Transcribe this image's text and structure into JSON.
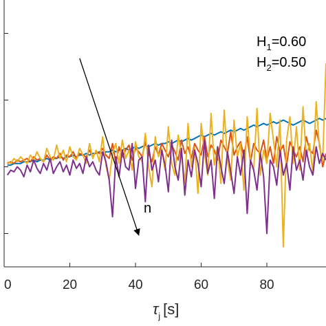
{
  "chart_data": {
    "type": "line",
    "xlabel": "τ",
    "xlabel_sub": "j",
    "xlabel_unit": "[s]",
    "xlim": [
      0,
      98
    ],
    "ylim": [
      0,
      1.6
    ],
    "x_ticks": [
      0,
      20,
      40,
      60,
      80
    ],
    "x_tick_labels": [
      "0",
      "20",
      "40",
      "60",
      "80"
    ],
    "y_ticks": [
      0.2,
      0.6,
      1.0,
      1.4
    ],
    "y_tick_labels": [],
    "grid": false,
    "legend": "none",
    "annotations": {
      "h1_label": "H",
      "h1_sub": "1",
      "h1_value": "=0.60",
      "h2_label": "H",
      "h2_sub": "2",
      "h2_value": "=0.50",
      "arrow_label": "n",
      "arrow": {
        "x1": 23,
        "y1": 1.25,
        "x2": 41,
        "y2": 0.19
      }
    },
    "x": [
      1,
      2,
      3,
      4,
      5,
      6,
      7,
      8,
      9,
      10,
      11,
      12,
      13,
      14,
      15,
      16,
      17,
      18,
      19,
      20,
      21,
      22,
      23,
      24,
      25,
      26,
      27,
      28,
      29,
      30,
      31,
      32,
      33,
      34,
      35,
      36,
      37,
      38,
      39,
      40,
      41,
      42,
      43,
      44,
      45,
      46,
      47,
      48,
      49,
      50,
      51,
      52,
      53,
      54,
      55,
      56,
      57,
      58,
      59,
      60,
      61,
      62,
      63,
      64,
      65,
      66,
      67,
      68,
      69,
      70,
      71,
      72,
      73,
      74,
      75,
      76,
      77,
      78,
      79,
      80,
      81,
      82,
      83,
      84,
      85,
      86,
      87,
      88,
      89,
      90,
      91,
      92,
      93,
      94,
      95,
      96,
      97,
      98
    ],
    "series": [
      {
        "color": "#0072BD",
        "values": [
          0.61,
          0.61,
          0.62,
          0.62,
          0.62,
          0.63,
          0.63,
          0.63,
          0.64,
          0.63,
          0.64,
          0.64,
          0.65,
          0.64,
          0.65,
          0.65,
          0.66,
          0.65,
          0.66,
          0.66,
          0.67,
          0.66,
          0.67,
          0.67,
          0.68,
          0.67,
          0.68,
          0.68,
          0.69,
          0.68,
          0.69,
          0.69,
          0.7,
          0.69,
          0.7,
          0.7,
          0.71,
          0.7,
          0.71,
          0.72,
          0.71,
          0.72,
          0.73,
          0.72,
          0.73,
          0.74,
          0.73,
          0.74,
          0.74,
          0.75,
          0.74,
          0.75,
          0.76,
          0.75,
          0.76,
          0.77,
          0.76,
          0.77,
          0.78,
          0.79,
          0.78,
          0.79,
          0.8,
          0.79,
          0.8,
          0.81,
          0.8,
          0.81,
          0.82,
          0.81,
          0.82,
          0.83,
          0.82,
          0.83,
          0.84,
          0.85,
          0.84,
          0.85,
          0.86,
          0.85,
          0.86,
          0.87,
          0.86,
          0.87,
          0.88,
          0.87,
          0.86,
          0.85,
          0.86,
          0.87,
          0.88,
          0.87,
          0.86,
          0.87,
          0.88,
          0.89,
          0.88,
          0.89
        ]
      },
      {
        "color": "#D95319",
        "values": [
          0.62,
          0.63,
          0.62,
          0.64,
          0.63,
          0.64,
          0.65,
          0.63,
          0.66,
          0.64,
          0.65,
          0.63,
          0.67,
          0.64,
          0.66,
          0.65,
          0.68,
          0.64,
          0.67,
          0.66,
          0.69,
          0.65,
          0.68,
          0.67,
          0.66,
          0.7,
          0.66,
          0.69,
          0.68,
          0.71,
          0.67,
          0.65,
          0.74,
          0.62,
          0.72,
          0.66,
          0.7,
          0.73,
          0.64,
          0.71,
          0.69,
          0.66,
          0.75,
          0.68,
          0.63,
          0.72,
          0.67,
          0.74,
          0.7,
          0.66,
          0.73,
          0.69,
          0.64,
          0.76,
          0.68,
          0.72,
          0.65,
          0.74,
          0.7,
          0.67,
          0.78,
          0.66,
          0.73,
          0.7,
          0.64,
          0.76,
          0.72,
          0.68,
          0.81,
          0.67,
          0.72,
          0.75,
          0.66,
          0.78,
          0.63,
          0.74,
          0.7,
          0.68,
          0.76,
          0.64,
          0.72,
          0.62,
          0.78,
          0.69,
          0.73,
          0.61,
          0.75,
          0.7,
          0.66,
          0.72,
          0.63,
          0.78,
          0.7,
          0.68,
          0.82,
          0.74,
          0.6,
          0.68
        ]
      },
      {
        "color": "#EDB120",
        "values": [
          0.63,
          0.62,
          0.65,
          0.63,
          0.66,
          0.64,
          0.62,
          0.67,
          0.64,
          0.69,
          0.65,
          0.63,
          0.71,
          0.66,
          0.64,
          0.73,
          0.65,
          0.7,
          0.63,
          0.72,
          0.66,
          0.64,
          0.71,
          0.67,
          0.62,
          0.74,
          0.65,
          0.7,
          0.63,
          0.78,
          0.61,
          0.52,
          0.68,
          0.74,
          0.62,
          0.76,
          0.65,
          0.7,
          0.58,
          0.75,
          0.66,
          0.63,
          0.8,
          0.6,
          0.48,
          0.78,
          0.66,
          0.71,
          0.58,
          0.84,
          0.62,
          0.55,
          0.79,
          0.67,
          0.5,
          0.86,
          0.6,
          0.72,
          0.44,
          0.86,
          0.68,
          0.55,
          0.92,
          0.61,
          0.72,
          0.5,
          0.94,
          0.64,
          0.52,
          0.88,
          0.66,
          0.74,
          0.46,
          0.9,
          0.64,
          0.58,
          0.95,
          0.55,
          0.7,
          0.62,
          0.92,
          0.76,
          0.6,
          0.88,
          0.12,
          0.76,
          0.9,
          0.62,
          0.84,
          0.58,
          0.96,
          0.66,
          0.74,
          0.56,
          0.99,
          0.72,
          0.64,
          1.22
        ]
      },
      {
        "color": "#7E2F8E",
        "values": [
          0.55,
          0.58,
          0.57,
          0.6,
          0.58,
          0.54,
          0.61,
          0.57,
          0.64,
          0.59,
          0.56,
          0.62,
          0.58,
          0.65,
          0.56,
          0.6,
          0.63,
          0.57,
          0.61,
          0.55,
          0.64,
          0.59,
          0.62,
          0.56,
          0.66,
          0.6,
          0.63,
          0.58,
          0.55,
          0.69,
          0.63,
          0.52,
          0.3,
          0.66,
          0.54,
          0.7,
          0.6,
          0.58,
          0.74,
          0.47,
          0.64,
          0.66,
          0.39,
          0.73,
          0.58,
          0.64,
          0.51,
          0.7,
          0.61,
          0.45,
          0.76,
          0.6,
          0.52,
          0.71,
          0.43,
          0.64,
          0.54,
          0.7,
          0.62,
          0.48,
          0.76,
          0.56,
          0.64,
          0.41,
          0.72,
          0.6,
          0.5,
          0.69,
          0.57,
          0.44,
          0.66,
          0.55,
          0.7,
          0.32,
          0.64,
          0.58,
          0.46,
          0.68,
          0.54,
          0.2,
          0.64,
          0.6,
          0.49,
          0.7,
          0.55,
          0.62,
          0.46,
          0.72,
          0.58,
          0.64,
          0.52,
          0.7,
          0.6,
          0.55,
          0.72,
          0.62,
          0.68,
          0.64
        ]
      }
    ]
  }
}
